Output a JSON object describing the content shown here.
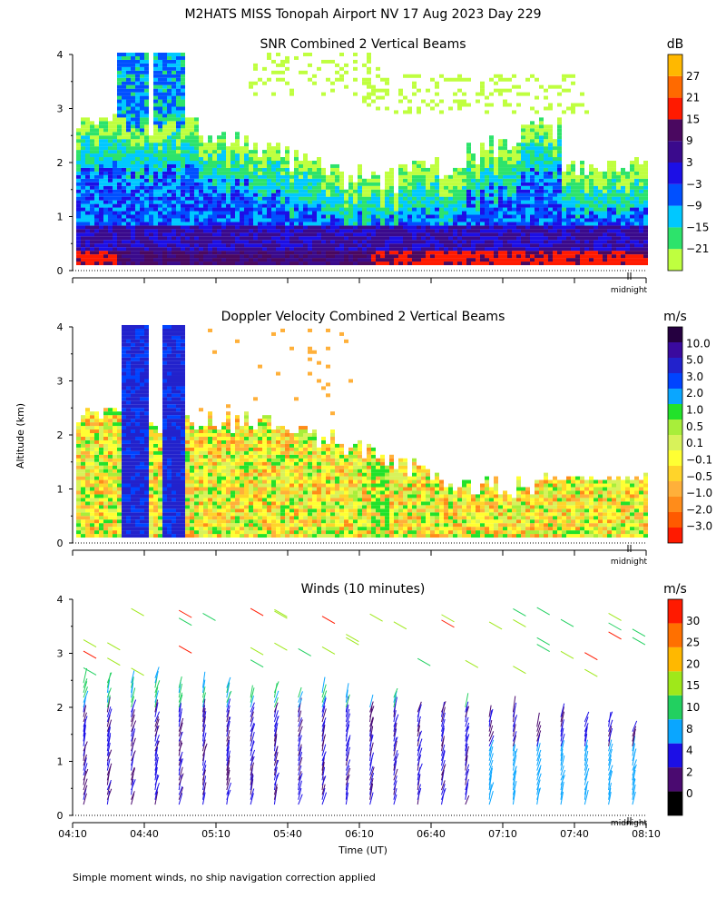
{
  "title": "M2HATS MISS Tonopah Airport NV  17 Aug 2023 Day 229",
  "y_axis_label": "Altitude (km)",
  "x_axis_label": "Time (UT)",
  "midnight_label": "midnight",
  "footnote": "Simple moment winds, no ship navigation correction applied",
  "colors": {
    "snr_scale": [
      "#bfff3f",
      "#2de36b",
      "#00c8ff",
      "#0050ff",
      "#1c0fe6",
      "#3a0a8c",
      "#4a0860",
      "#ff1a00",
      "#ff6a00",
      "#ffb800"
    ],
    "doppler_scale": [
      "#ff1a00",
      "#ff5a00",
      "#ff8c1a",
      "#ffb03a",
      "#ffd42a",
      "#ffff33",
      "#d8f25a",
      "#a8ee3a",
      "#22e22a",
      "#0aa6ff",
      "#0044ff",
      "#2222cc",
      "#3a0a9e",
      "#250040"
    ],
    "wind_scale": [
      "#000000",
      "#4a0a70",
      "#1c0fe6",
      "#0aa6ff",
      "#22d060",
      "#9fe81a",
      "#ffb800",
      "#ff7000",
      "#ff1a00"
    ]
  },
  "chart_data": [
    {
      "type": "heatmap",
      "title": "SNR Combined 2 Vertical Beams",
      "units": "dB",
      "x_range_ut": [
        "04:10",
        "08:10"
      ],
      "y_range_km": [
        0,
        4
      ],
      "y_ticks": [
        "0",
        "1",
        "2",
        "3",
        "4"
      ],
      "colorbar_ticks": [
        "27",
        "21",
        "15",
        "9",
        "3",
        "−3",
        "−9",
        "−15",
        "−21"
      ]
    },
    {
      "type": "heatmap",
      "title": "Doppler Velocity Combined 2 Vertical Beams",
      "units": "m/s",
      "x_range_ut": [
        "04:10",
        "08:10"
      ],
      "y_range_km": [
        0,
        4
      ],
      "y_ticks": [
        "0",
        "1",
        "2",
        "3",
        "4"
      ],
      "colorbar_ticks": [
        "10.0",
        "5.0",
        "3.0",
        "2.0",
        "1.0",
        "0.5",
        "0.1",
        "−0.1",
        "−0.5",
        "−1.0",
        "−2.0",
        "−3.0"
      ]
    },
    {
      "type": "scatter",
      "title": "Winds (10 minutes)",
      "units": "m/s",
      "x_range_ut": [
        "04:10",
        "08:10"
      ],
      "x_ticks": [
        "04:10",
        "04:40",
        "05:10",
        "05:40",
        "06:10",
        "06:40",
        "07:10",
        "07:40",
        "08:10"
      ],
      "y_range_km": [
        0,
        4
      ],
      "y_ticks": [
        "0",
        "1",
        "2",
        "3",
        "4"
      ],
      "colorbar_ticks": [
        "30",
        "25",
        "20",
        "15",
        "10",
        "8",
        "4",
        "2",
        "0"
      ]
    }
  ]
}
